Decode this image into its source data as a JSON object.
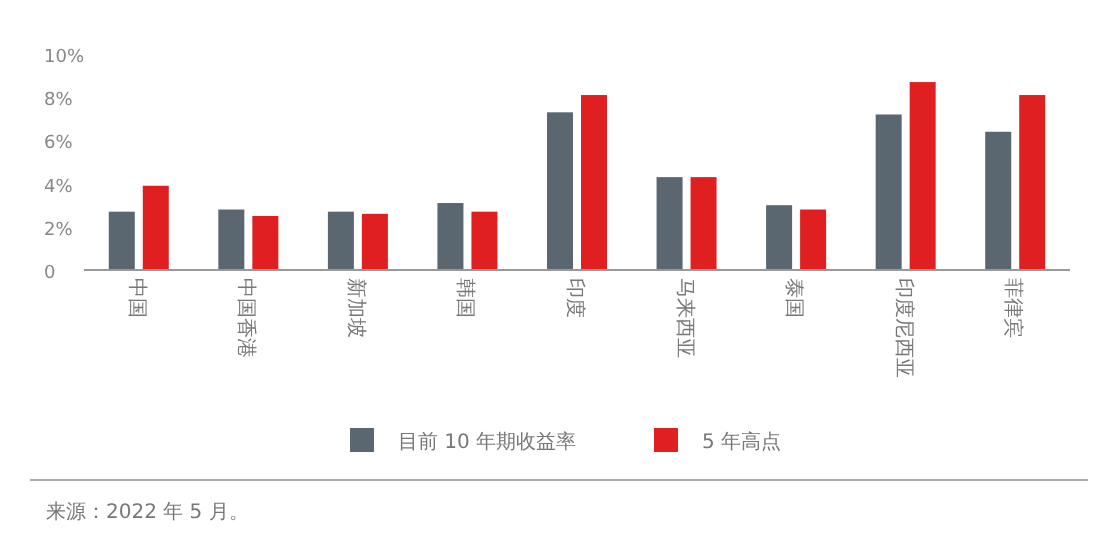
{
  "chart_data": {
    "type": "bar",
    "categories": [
      "中国",
      "中国香港",
      "新加坡",
      "韩国",
      "印度",
      "马来西亚",
      "泰国",
      "印度尼西亚",
      "菲律宾"
    ],
    "series": [
      {
        "name": "目前 10 年期收益率",
        "color": "#5a6670",
        "values": [
          2.7,
          2.8,
          2.7,
          3.1,
          7.3,
          4.3,
          3.0,
          7.2,
          6.4
        ]
      },
      {
        "name": "5 年高点",
        "color": "#e02020",
        "values": [
          3.9,
          2.5,
          2.6,
          2.7,
          8.1,
          4.3,
          2.8,
          8.7,
          8.1
        ]
      }
    ],
    "ylim": [
      0,
      10
    ],
    "yticks": [
      0,
      {
        "value": 2,
        "label": "2%"
      },
      {
        "value": 4,
        "label": "4%"
      },
      {
        "value": 6,
        "label": "6%"
      },
      {
        "value": 8,
        "label": "8%"
      },
      {
        "value": 10,
        "label": "10%"
      }
    ],
    "legend": "bottom",
    "annotations": [
      "来源：2022 年 5 月。"
    ]
  }
}
